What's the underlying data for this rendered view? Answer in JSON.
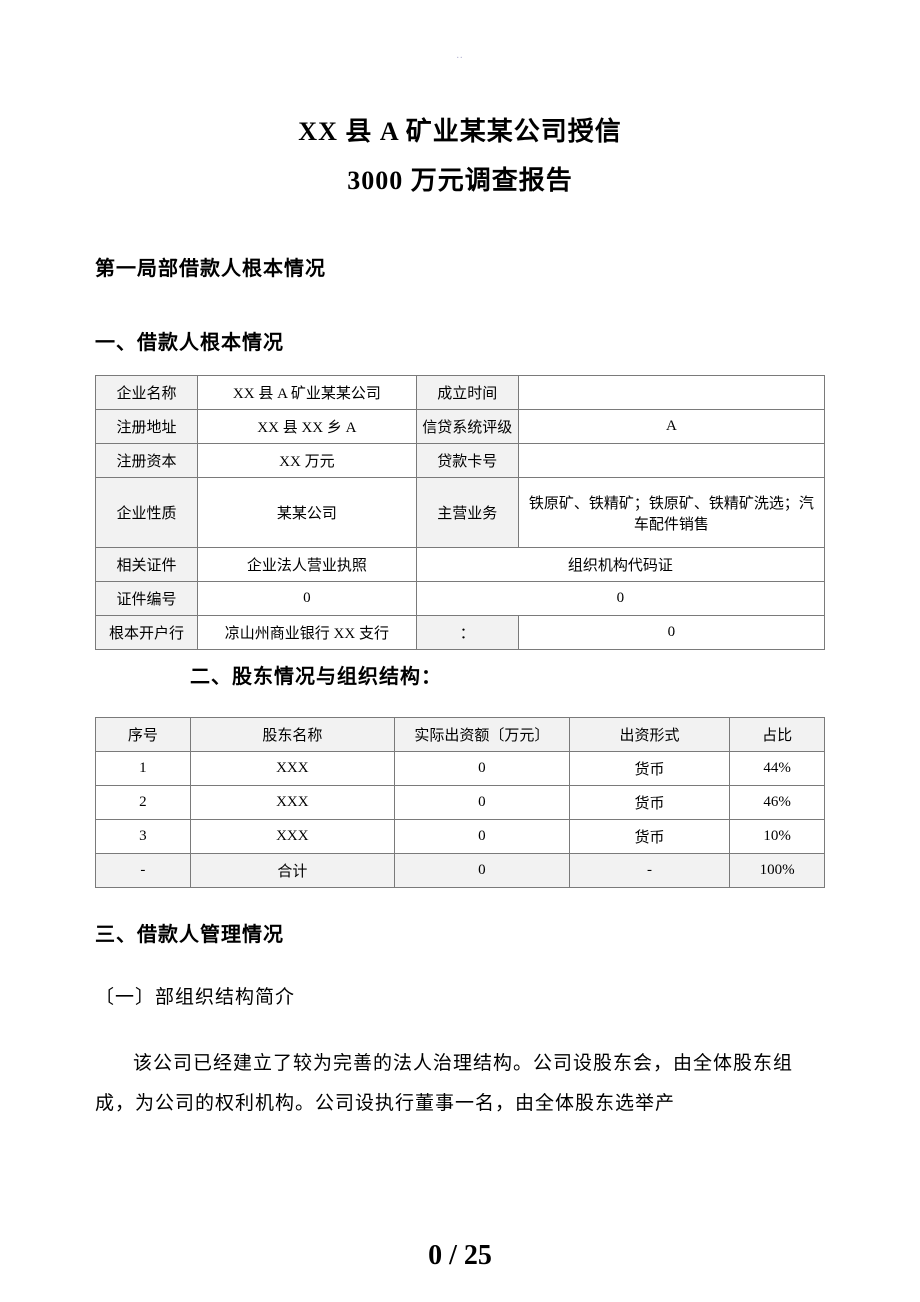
{
  "top_mark": "..",
  "title": {
    "line1": "XX 县 A 矿业某某公司授信",
    "line2": "3000 万元调查报告"
  },
  "section1_heading": "第一局部借款人根本情况",
  "section1_sub1": "一、借款人根本情况",
  "table1": {
    "rows": [
      {
        "label1": "企业名称",
        "value1": "XX 县 A 矿业某某公司",
        "label2": "成立时间",
        "value2": ""
      },
      {
        "label1": "注册地址",
        "value1": "XX 县 XX 乡 A",
        "label2": "信贷系统评级",
        "value2": "A"
      },
      {
        "label1": "注册资本",
        "value1": "XX 万元",
        "label2": "贷款卡号",
        "value2": ""
      },
      {
        "label1": "企业性质",
        "value1": "某某公司",
        "label2": "主营业务",
        "value2": "铁原矿、铁精矿；铁原矿、铁精矿洗选；汽车配件销售"
      },
      {
        "label1": "相关证件",
        "value1": "企业法人营业执照",
        "span_value": "组织机构代码证"
      },
      {
        "label1": "证件编号",
        "value1": "0",
        "span_value": "0"
      },
      {
        "label1": "根本开户行",
        "value1": "凉山州商业银行 XX 支行",
        "label2": "：",
        "value2": "0"
      }
    ]
  },
  "section1_sub2": "二、股东情况与组织结构：",
  "table2": {
    "headers": [
      "序号",
      "股东名称",
      "实际出资额〔万元〕",
      "出资形式",
      "占比"
    ],
    "rows": [
      {
        "idx": "1",
        "name": "XXX",
        "amount": "0",
        "form": "货币",
        "pct": "44%"
      },
      {
        "idx": "2",
        "name": "XXX",
        "amount": "0",
        "form": "货币",
        "pct": "46%"
      },
      {
        "idx": "3",
        "name": "XXX",
        "amount": "0",
        "form": "货币",
        "pct": "10%"
      }
    ],
    "total": {
      "idx": "-",
      "name": "合计",
      "amount": "0",
      "form": "-",
      "pct": "100%"
    }
  },
  "section1_sub3": "三、借款人管理情况",
  "section1_sub3_1": "〔一〕部组织结构简介",
  "body_para": "该公司已经建立了较为完善的法人治理结构。公司设股东会，由全体股东组成，为公司的权利机构。公司设执行董事一名，由全体股东选举产",
  "page_number": "0  /  25",
  "colors": {
    "header_bg": "#f2f2f2",
    "border": "#7a7a7a",
    "text": "#000000",
    "bg": "#ffffff"
  }
}
